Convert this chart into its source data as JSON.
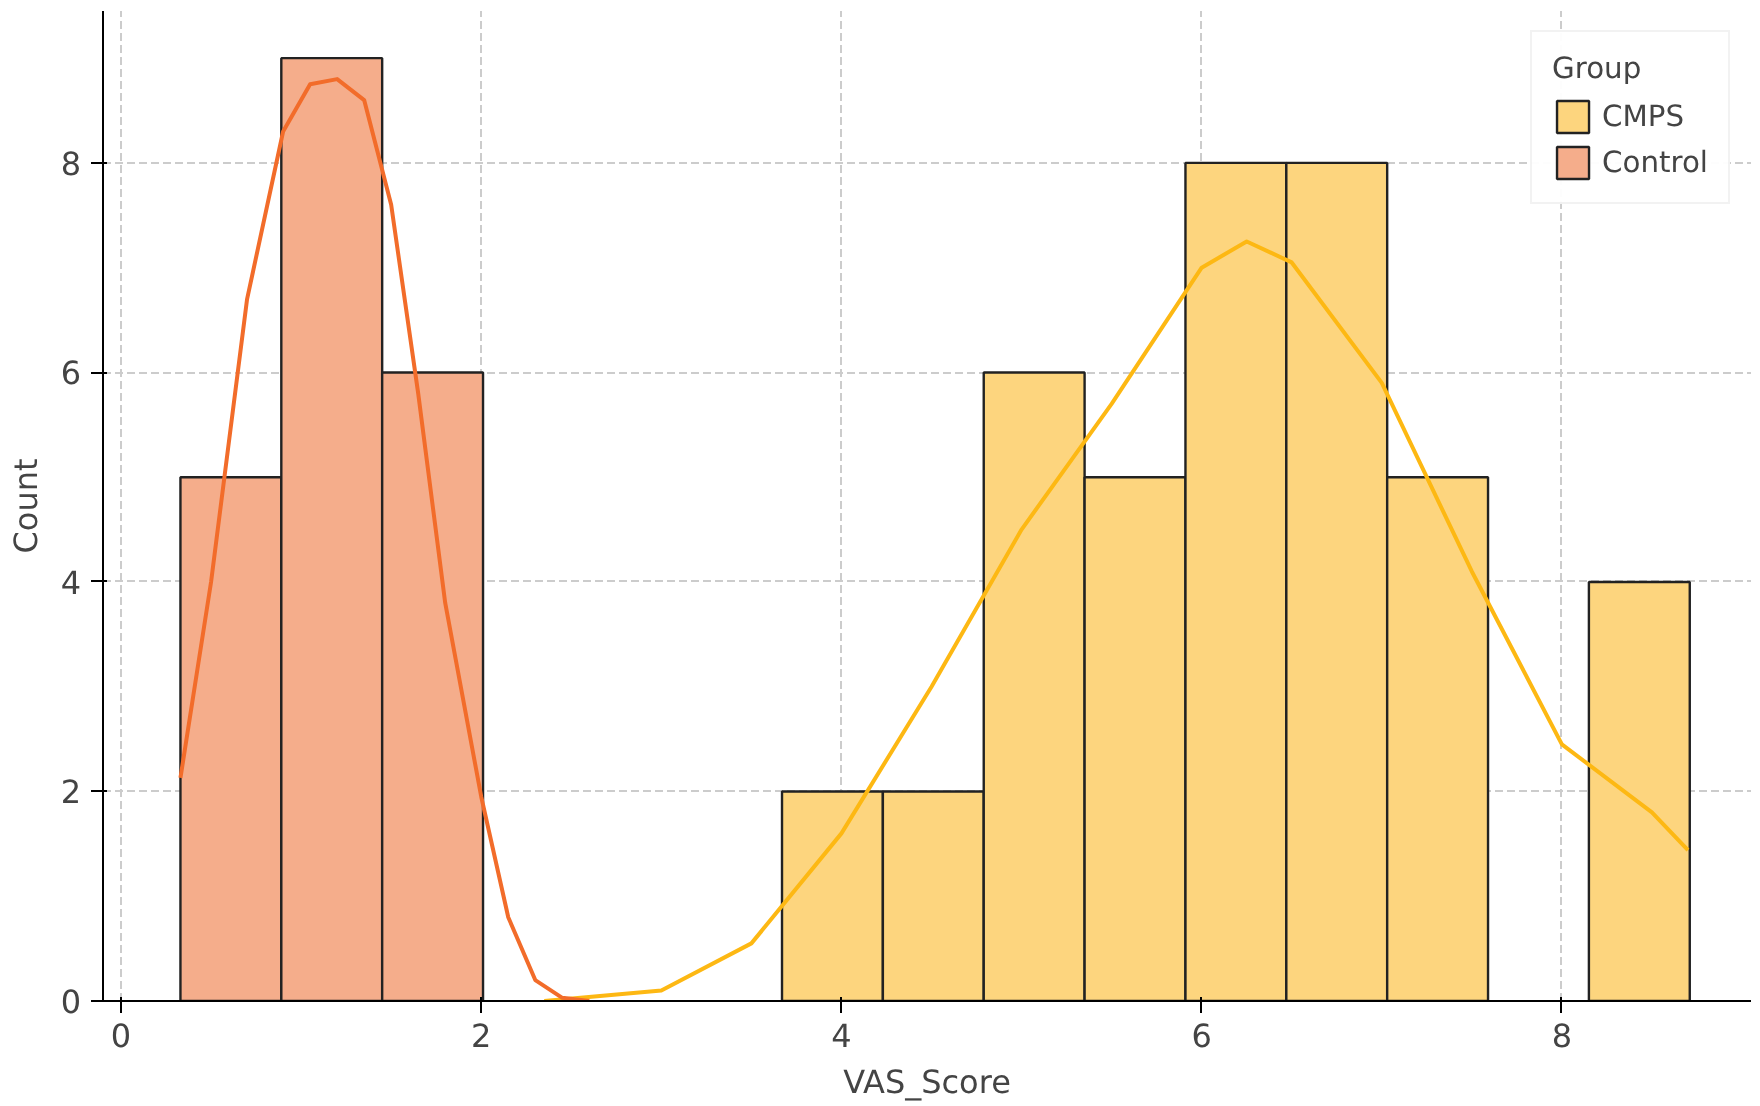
{
  "chart_data": {
    "type": "histogram",
    "xlabel": "VAS_Score",
    "ylabel": "Count",
    "legend_title": "Group",
    "legend": "top right",
    "grid": true,
    "xlim": [
      -0.1,
      9.05
    ],
    "ylim": [
      0,
      9.45
    ],
    "xticks": [
      0,
      2,
      4,
      6,
      8
    ],
    "yticks": [
      0,
      2,
      4,
      6,
      8
    ],
    "series": [
      {
        "name": "CMPS",
        "color": "#fdd57e",
        "bins": [
          3.67,
          4.23,
          4.79,
          5.35,
          5.91,
          6.47,
          7.03,
          7.59,
          8.15,
          8.71
        ],
        "values": [
          2,
          2,
          6,
          5,
          8,
          8,
          5,
          0,
          4
        ]
      },
      {
        "name": "Control",
        "color": "#f5ad8b",
        "bins": [
          0.33,
          0.89,
          1.45,
          2.01
        ],
        "values": [
          5,
          9,
          6
        ]
      },
      {
        "type": "line",
        "color": "#fdb813",
        "x": [
          2.35,
          3.0,
          3.5,
          4.0,
          4.5,
          5.0,
          5.5,
          6.0,
          6.25,
          6.5,
          7.0,
          7.5,
          8.0,
          8.5,
          8.7
        ],
        "values": [
          0.0,
          0.1,
          0.55,
          1.6,
          3.0,
          4.5,
          5.7,
          7.0,
          7.25,
          7.05,
          5.9,
          4.1,
          2.45,
          1.8,
          1.44
        ]
      },
      {
        "type": "line",
        "color": "#f26c2a",
        "x": [
          0.33,
          0.5,
          0.7,
          0.9,
          1.05,
          1.2,
          1.35,
          1.5,
          1.65,
          1.8,
          2.0,
          2.15,
          2.3,
          2.45,
          2.6
        ],
        "values": [
          2.13,
          4.0,
          6.7,
          8.3,
          8.75,
          8.8,
          8.6,
          7.6,
          5.8,
          3.8,
          1.95,
          0.8,
          0.2,
          0.03,
          0.0
        ]
      }
    ]
  }
}
